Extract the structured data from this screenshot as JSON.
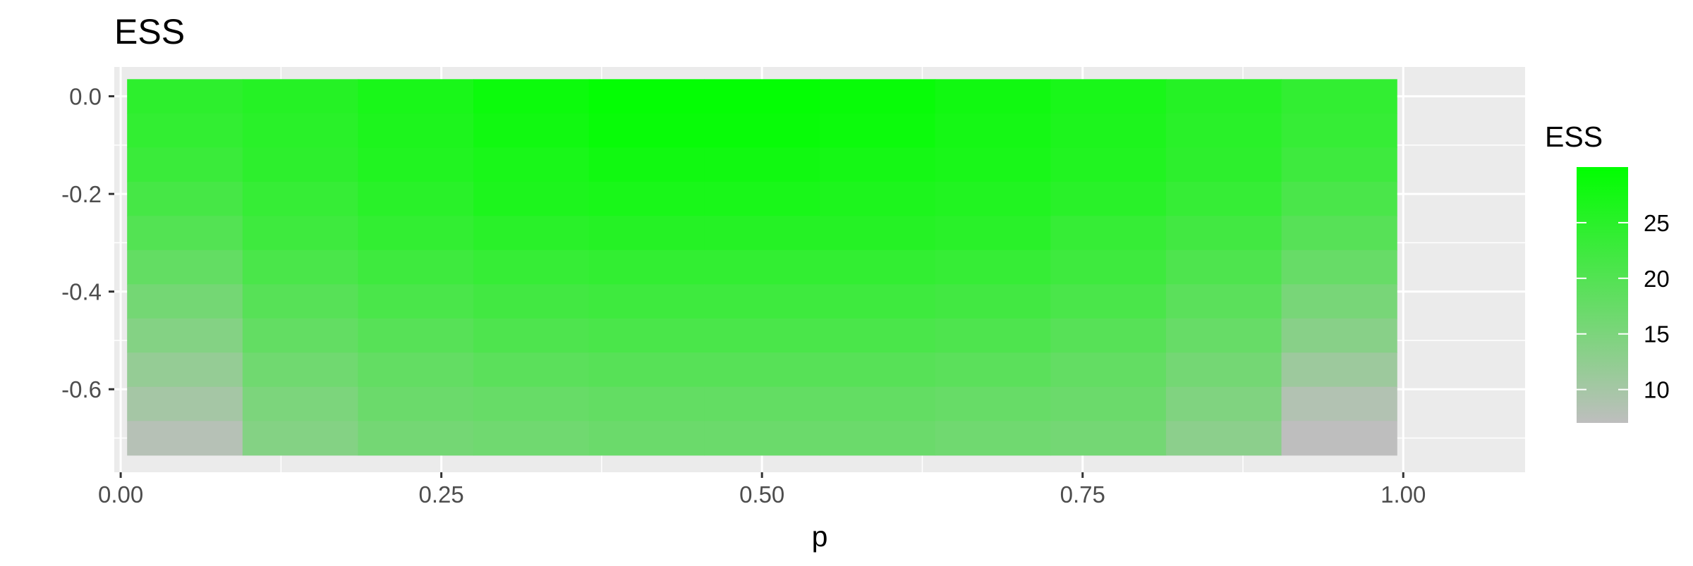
{
  "chart_data": {
    "type": "heatmap",
    "title": "ESS",
    "xlabel": "p",
    "ylabel": "",
    "x": [
      0.05,
      0.14,
      0.23,
      0.32,
      0.41,
      0.5,
      0.59,
      0.68,
      0.77,
      0.86,
      0.95
    ],
    "y": [
      0.0,
      -0.07,
      -0.14,
      -0.21,
      -0.28,
      -0.35,
      -0.42,
      -0.49,
      -0.56,
      -0.63,
      -0.7
    ],
    "values": [
      [
        24.5,
        25.5,
        27.0,
        28.5,
        29.5,
        29.5,
        29.0,
        28.0,
        27.0,
        25.5,
        24.0
      ],
      [
        24.0,
        25.0,
        26.5,
        28.0,
        29.0,
        29.0,
        28.5,
        27.5,
        26.5,
        25.0,
        23.5
      ],
      [
        23.0,
        24.5,
        26.0,
        27.0,
        28.0,
        28.0,
        27.5,
        27.0,
        26.0,
        24.5,
        22.5
      ],
      [
        21.5,
        23.5,
        25.0,
        26.5,
        27.0,
        27.0,
        26.5,
        26.0,
        25.0,
        23.5,
        21.0
      ],
      [
        20.0,
        22.5,
        24.0,
        25.0,
        25.5,
        25.5,
        25.5,
        25.0,
        23.5,
        22.0,
        19.5
      ],
      [
        18.0,
        21.0,
        22.5,
        23.5,
        24.0,
        24.0,
        24.0,
        23.5,
        22.5,
        20.5,
        17.5
      ],
      [
        16.0,
        19.5,
        21.0,
        22.0,
        22.5,
        22.5,
        22.5,
        22.0,
        21.0,
        19.0,
        15.5
      ],
      [
        14.0,
        18.0,
        19.5,
        20.5,
        21.0,
        21.0,
        21.0,
        20.5,
        19.5,
        17.5,
        13.5
      ],
      [
        12.0,
        16.5,
        18.0,
        19.0,
        19.5,
        19.5,
        19.5,
        19.0,
        18.0,
        16.0,
        11.0
      ],
      [
        10.0,
        15.0,
        17.0,
        17.5,
        18.0,
        18.0,
        18.0,
        17.5,
        17.0,
        14.5,
        8.5
      ],
      [
        8.0,
        14.0,
        16.0,
        16.5,
        17.0,
        17.0,
        17.0,
        16.5,
        16.0,
        13.0,
        7.0
      ]
    ],
    "xlim": [
      -0.005,
      1.095
    ],
    "ylim": [
      -0.77,
      0.06
    ],
    "x_ticks": [
      0.0,
      0.25,
      0.5,
      0.75,
      1.0
    ],
    "x_tick_labels": [
      "0.00",
      "0.25",
      "0.50",
      "0.75",
      "1.00"
    ],
    "y_ticks": [
      0.0,
      -0.2,
      -0.4,
      -0.6
    ],
    "y_tick_labels": [
      "0.0",
      "-0.2",
      "-0.4",
      "-0.6"
    ],
    "grid": true,
    "legend": {
      "title": "ESS",
      "position": "right",
      "range": [
        7,
        30
      ],
      "ticks": [
        10,
        15,
        20,
        25
      ],
      "tick_labels": [
        "10",
        "15",
        "20",
        "25"
      ],
      "low_color": "#BEBEBE",
      "high_color": "#00FF00"
    },
    "panel_background": "#EBEBEB",
    "grid_color": "#FFFFFF"
  }
}
